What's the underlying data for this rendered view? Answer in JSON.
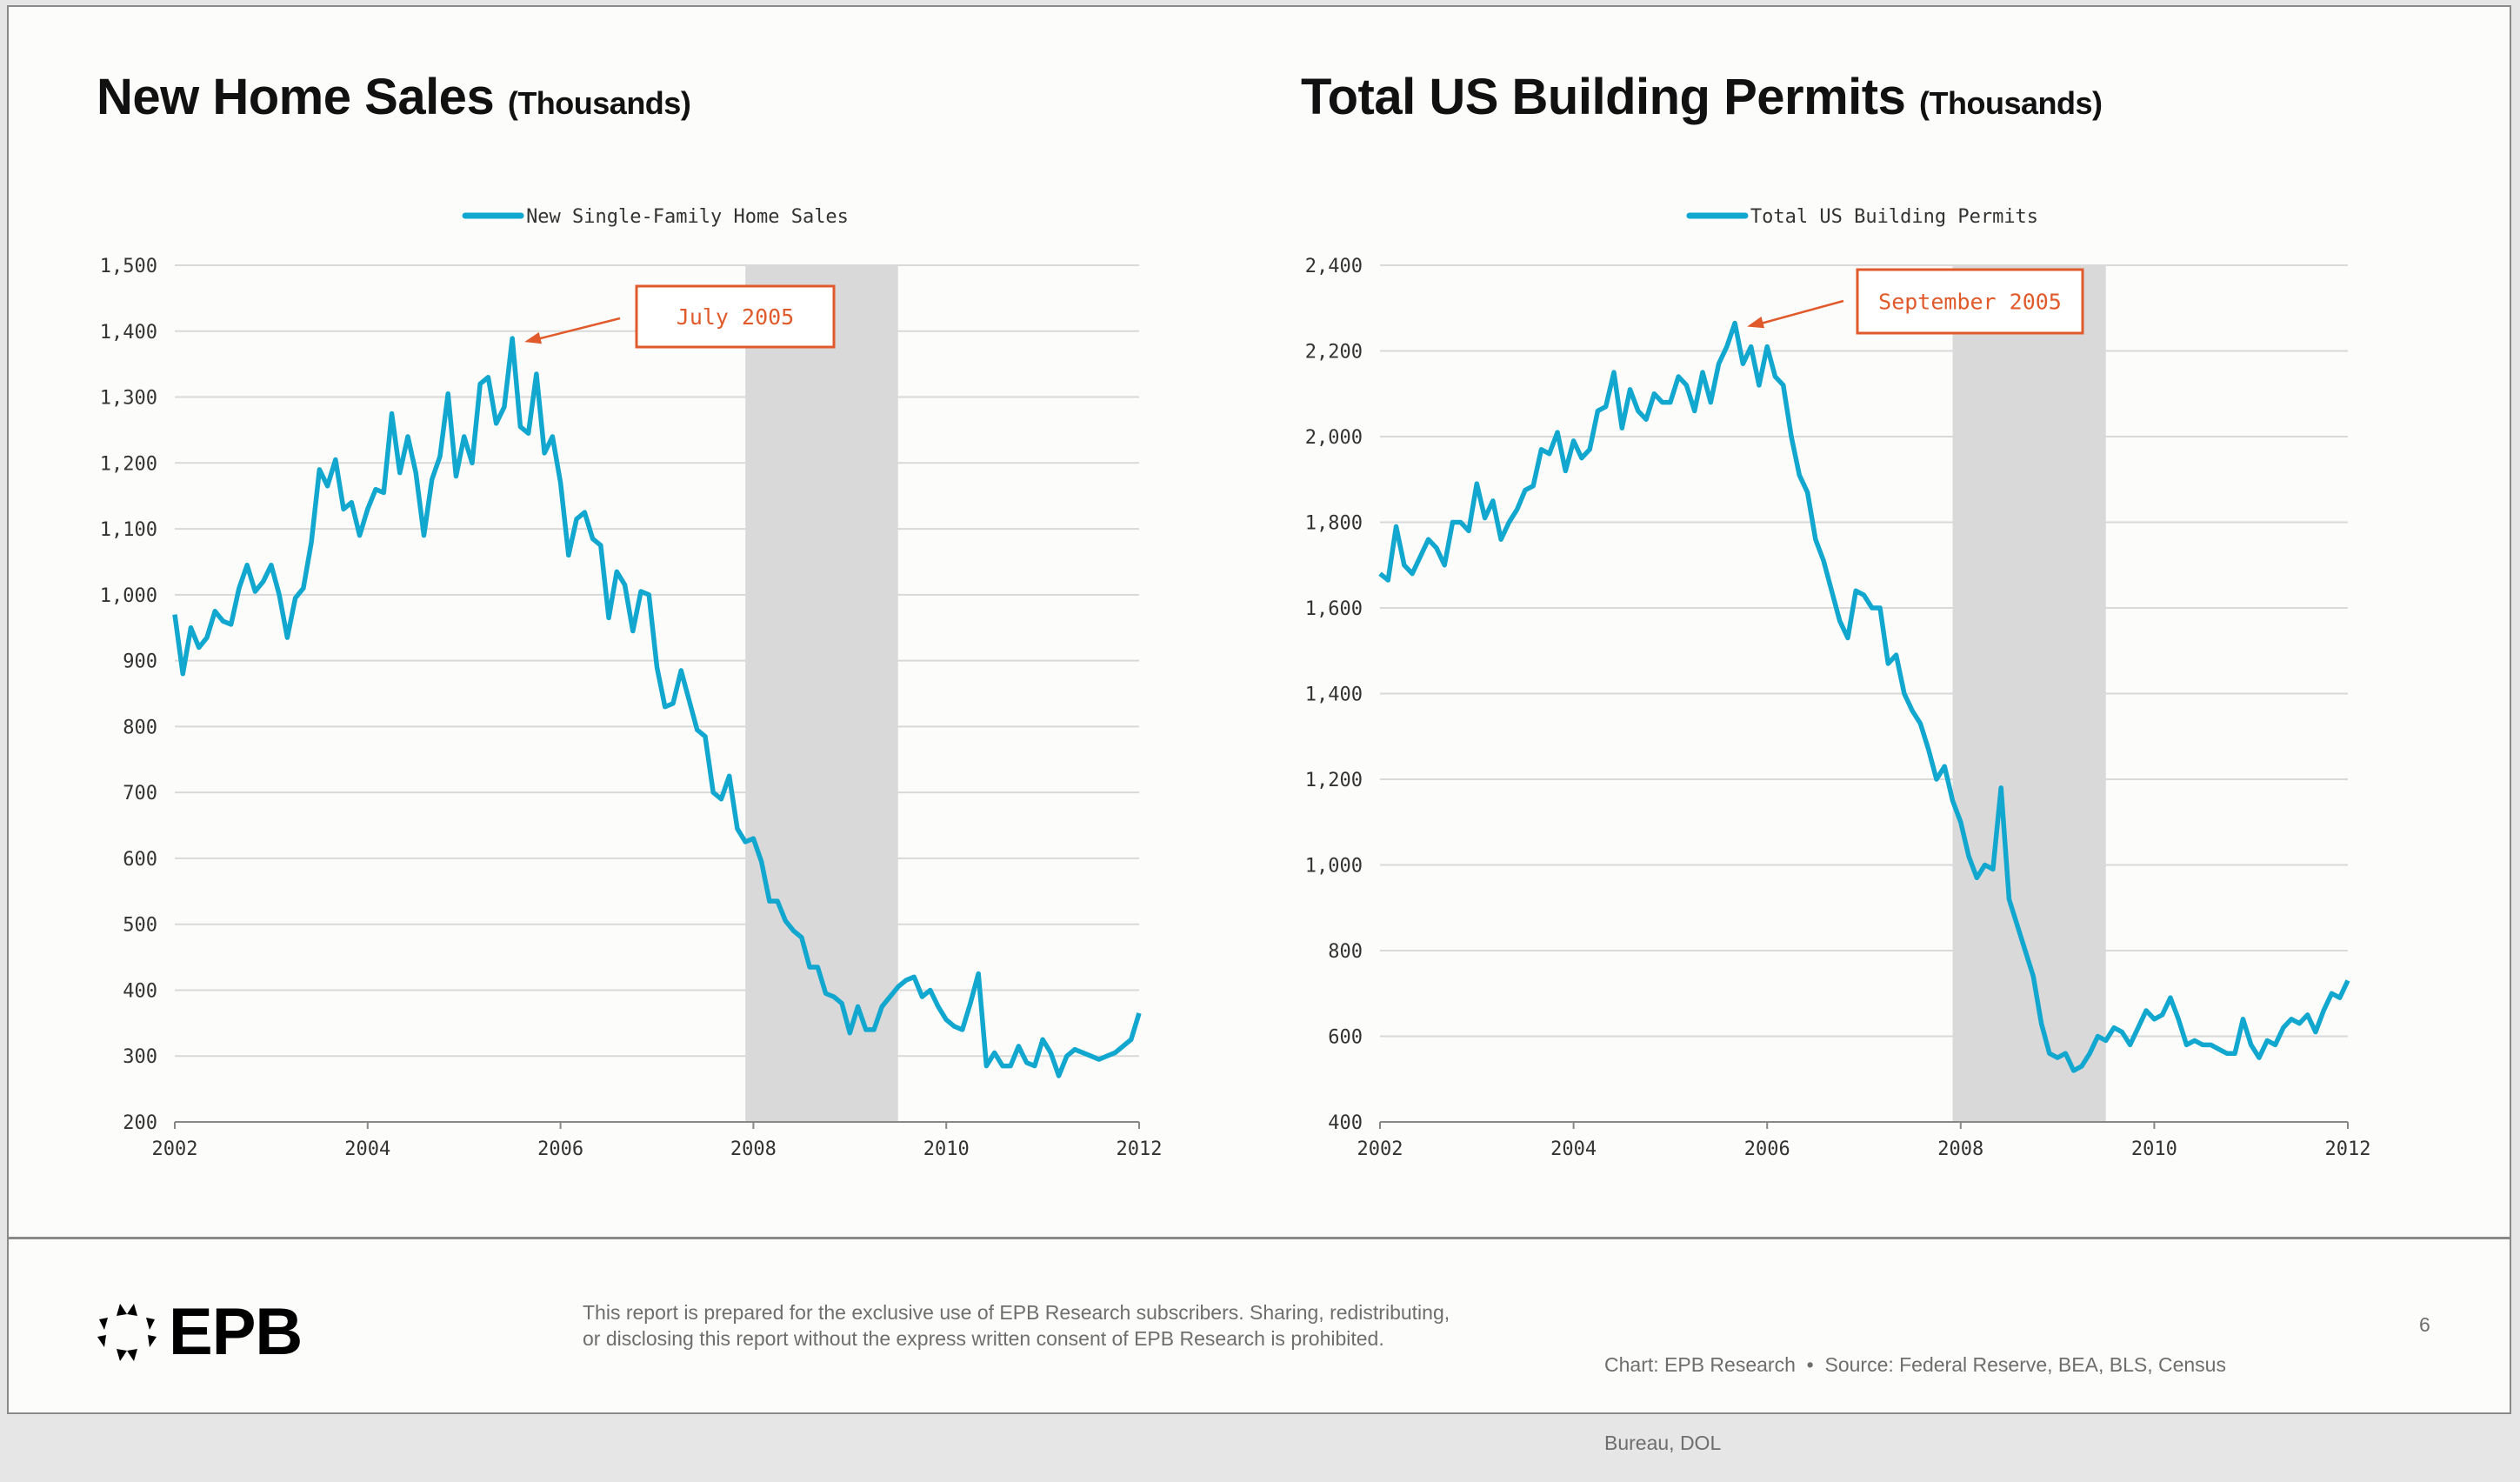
{
  "colors": {
    "line": "#12a7cf",
    "recession": "#d9d9d9",
    "grid": "#d9d9d9",
    "annotation": "#e05a2b"
  },
  "footer": {
    "logo": "EPB",
    "disclaimer_line1": "This report is prepared for the exclusive use of EPB Research subscribers. Sharing, redistributing,",
    "disclaimer_line2": "or disclosing this report without the express written consent of EPB Research is prohibited.",
    "source_line1": "Chart: EPB Research  •  Source: Federal Reserve, BEA, BLS, Census",
    "source_line2": "Bureau, DOL",
    "page_number": "6"
  },
  "chart_data": [
    {
      "type": "line",
      "title": "New Home Sales",
      "title_unit": "(Thousands)",
      "legend": "New Single-Family Home Sales",
      "legend_position": "top-center",
      "grid": true,
      "xlim": [
        2002,
        2012
      ],
      "x_ticks": [
        "2002",
        "2004",
        "2006",
        "2008",
        "2010",
        "2012"
      ],
      "ylim": [
        200,
        1500
      ],
      "y_ticks": [
        "200",
        "300",
        "400",
        "500",
        "600",
        "700",
        "800",
        "900",
        "1,000",
        "1,100",
        "1,200",
        "1,300",
        "1,400",
        "1,500"
      ],
      "recession": [
        2007.917,
        2009.5
      ],
      "annotation": {
        "label": "July 2005",
        "x": 2005.5,
        "y": 1389
      },
      "start": 2002,
      "frequency": "monthly",
      "values": [
        970,
        880,
        950,
        920,
        935,
        975,
        960,
        955,
        1010,
        1045,
        1005,
        1020,
        1045,
        1000,
        935,
        995,
        1010,
        1080,
        1190,
        1165,
        1205,
        1130,
        1140,
        1090,
        1130,
        1160,
        1155,
        1275,
        1185,
        1240,
        1185,
        1090,
        1175,
        1210,
        1305,
        1180,
        1240,
        1200,
        1320,
        1330,
        1260,
        1285,
        1389,
        1255,
        1245,
        1335,
        1215,
        1240,
        1170,
        1060,
        1115,
        1125,
        1085,
        1075,
        965,
        1035,
        1015,
        945,
        1005,
        1000,
        890,
        830,
        835,
        885,
        840,
        795,
        785,
        700,
        690,
        725,
        645,
        625,
        630,
        595,
        535,
        535,
        505,
        490,
        480,
        435,
        435,
        395,
        390,
        380,
        335,
        375,
        340,
        340,
        375,
        390,
        405,
        415,
        420,
        390,
        400,
        375,
        355,
        345,
        340,
        380,
        425,
        285,
        305,
        285,
        285,
        315,
        290,
        285,
        325,
        305,
        270,
        300,
        310,
        305,
        300,
        295,
        300,
        305,
        315,
        325,
        365
      ]
    },
    {
      "type": "line",
      "title": "Total US Building Permits",
      "title_unit": "(Thousands)",
      "legend": "Total US Building Permits",
      "legend_position": "top-center",
      "grid": true,
      "xlim": [
        2002,
        2012
      ],
      "x_ticks": [
        "2002",
        "2004",
        "2006",
        "2008",
        "2010",
        "2012"
      ],
      "ylim": [
        400,
        2400
      ],
      "y_ticks": [
        "400",
        "600",
        "800",
        "1,000",
        "1,200",
        "1,400",
        "1,600",
        "1,800",
        "2,000",
        "2,200",
        "2,400"
      ],
      "recession": [
        2007.917,
        2009.5
      ],
      "annotation": {
        "label": "September 2005",
        "x": 2005.667,
        "y": 2265
      },
      "start": 2002,
      "frequency": "monthly",
      "values": [
        1680,
        1665,
        1790,
        1700,
        1680,
        1720,
        1760,
        1740,
        1700,
        1800,
        1800,
        1780,
        1890,
        1810,
        1850,
        1760,
        1800,
        1830,
        1875,
        1885,
        1970,
        1960,
        2010,
        1920,
        1990,
        1950,
        1970,
        2060,
        2070,
        2150,
        2020,
        2110,
        2060,
        2040,
        2100,
        2080,
        2080,
        2140,
        2120,
        2060,
        2150,
        2080,
        2170,
        2210,
        2265,
        2170,
        2210,
        2120,
        2210,
        2140,
        2120,
        2000,
        1910,
        1870,
        1760,
        1710,
        1640,
        1570,
        1530,
        1640,
        1630,
        1600,
        1600,
        1470,
        1490,
        1400,
        1360,
        1330,
        1270,
        1200,
        1230,
        1150,
        1100,
        1020,
        970,
        1000,
        990,
        1180,
        920,
        860,
        800,
        740,
        630,
        560,
        550,
        560,
        520,
        530,
        560,
        600,
        590,
        620,
        610,
        580,
        620,
        660,
        640,
        650,
        690,
        640,
        580,
        590,
        580,
        580,
        570,
        560,
        560,
        640,
        580,
        550,
        590,
        580,
        620,
        640,
        630,
        650,
        610,
        660,
        700,
        690,
        730
      ]
    }
  ]
}
